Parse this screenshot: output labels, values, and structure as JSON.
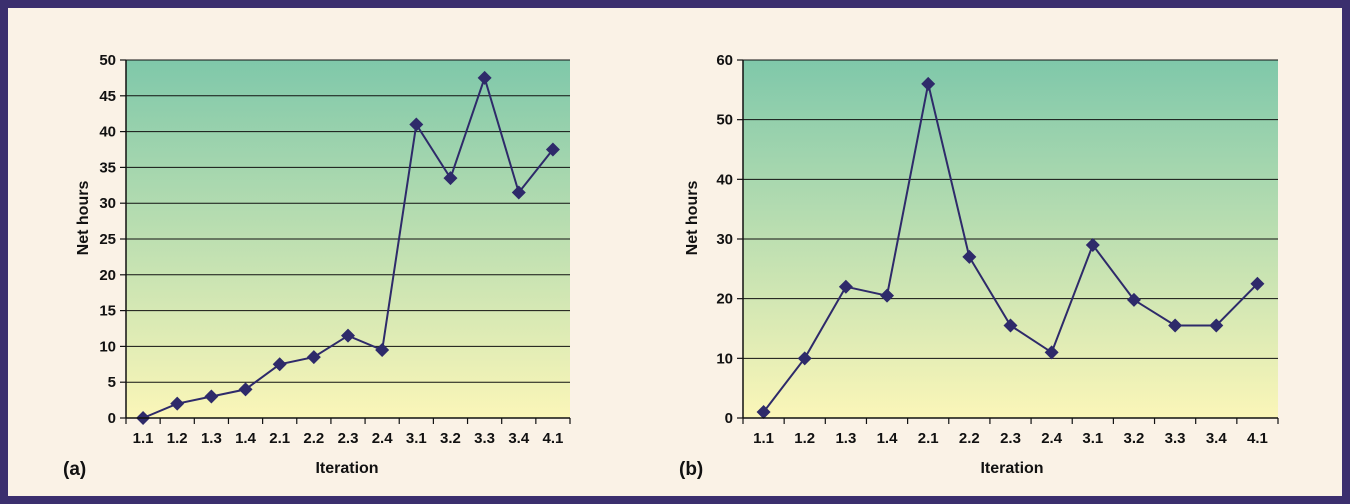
{
  "figure": {
    "panel_labels": [
      "(a)",
      "(b)"
    ]
  },
  "chart_data": [
    {
      "type": "line",
      "panel": "(a)",
      "xlabel": "Iteration",
      "ylabel": "Net hours",
      "categories": [
        "1.1",
        "1.2",
        "1.3",
        "1.4",
        "2.1",
        "2.2",
        "2.3",
        "2.4",
        "3.1",
        "3.2",
        "3.3",
        "3.4",
        "4.1"
      ],
      "values": [
        0,
        2,
        3,
        4,
        7.5,
        8.5,
        11.5,
        9.5,
        41,
        33.5,
        47.5,
        31.5,
        37.5
      ],
      "ylim": [
        0,
        50
      ],
      "yticks": [
        0,
        5,
        10,
        15,
        20,
        25,
        30,
        35,
        40,
        45,
        50
      ],
      "yticks_label": [
        "0",
        "5",
        "10",
        "15",
        "20",
        "25",
        "30",
        "35",
        "40",
        "45",
        "50"
      ],
      "grid": true,
      "line_color": "#2e2a6a",
      "marker": "diamond",
      "background_gradient": [
        "#7fc8aa",
        "#fbf6b8"
      ]
    },
    {
      "type": "line",
      "panel": "(b)",
      "xlabel": "Iteration",
      "ylabel": "Net hours",
      "categories": [
        "1.1",
        "1.2",
        "1.3",
        "1.4",
        "2.1",
        "2.2",
        "2.3",
        "2.4",
        "3.1",
        "3.2",
        "3.3",
        "3.4",
        "4.1"
      ],
      "values": [
        1,
        10,
        22,
        20.5,
        56,
        27,
        15.5,
        11,
        29,
        19.8,
        15.5,
        15.5,
        22.5
      ],
      "ylim": [
        0,
        60
      ],
      "yticks": [
        0,
        10,
        20,
        30,
        40,
        50,
        60
      ],
      "yticks_label": [
        "0",
        "10",
        "20",
        "30",
        "40",
        "50",
        "60"
      ],
      "grid": true,
      "line_color": "#2e2a6a",
      "marker": "diamond",
      "background_gradient": [
        "#7fc8aa",
        "#fbf6b8"
      ]
    }
  ]
}
